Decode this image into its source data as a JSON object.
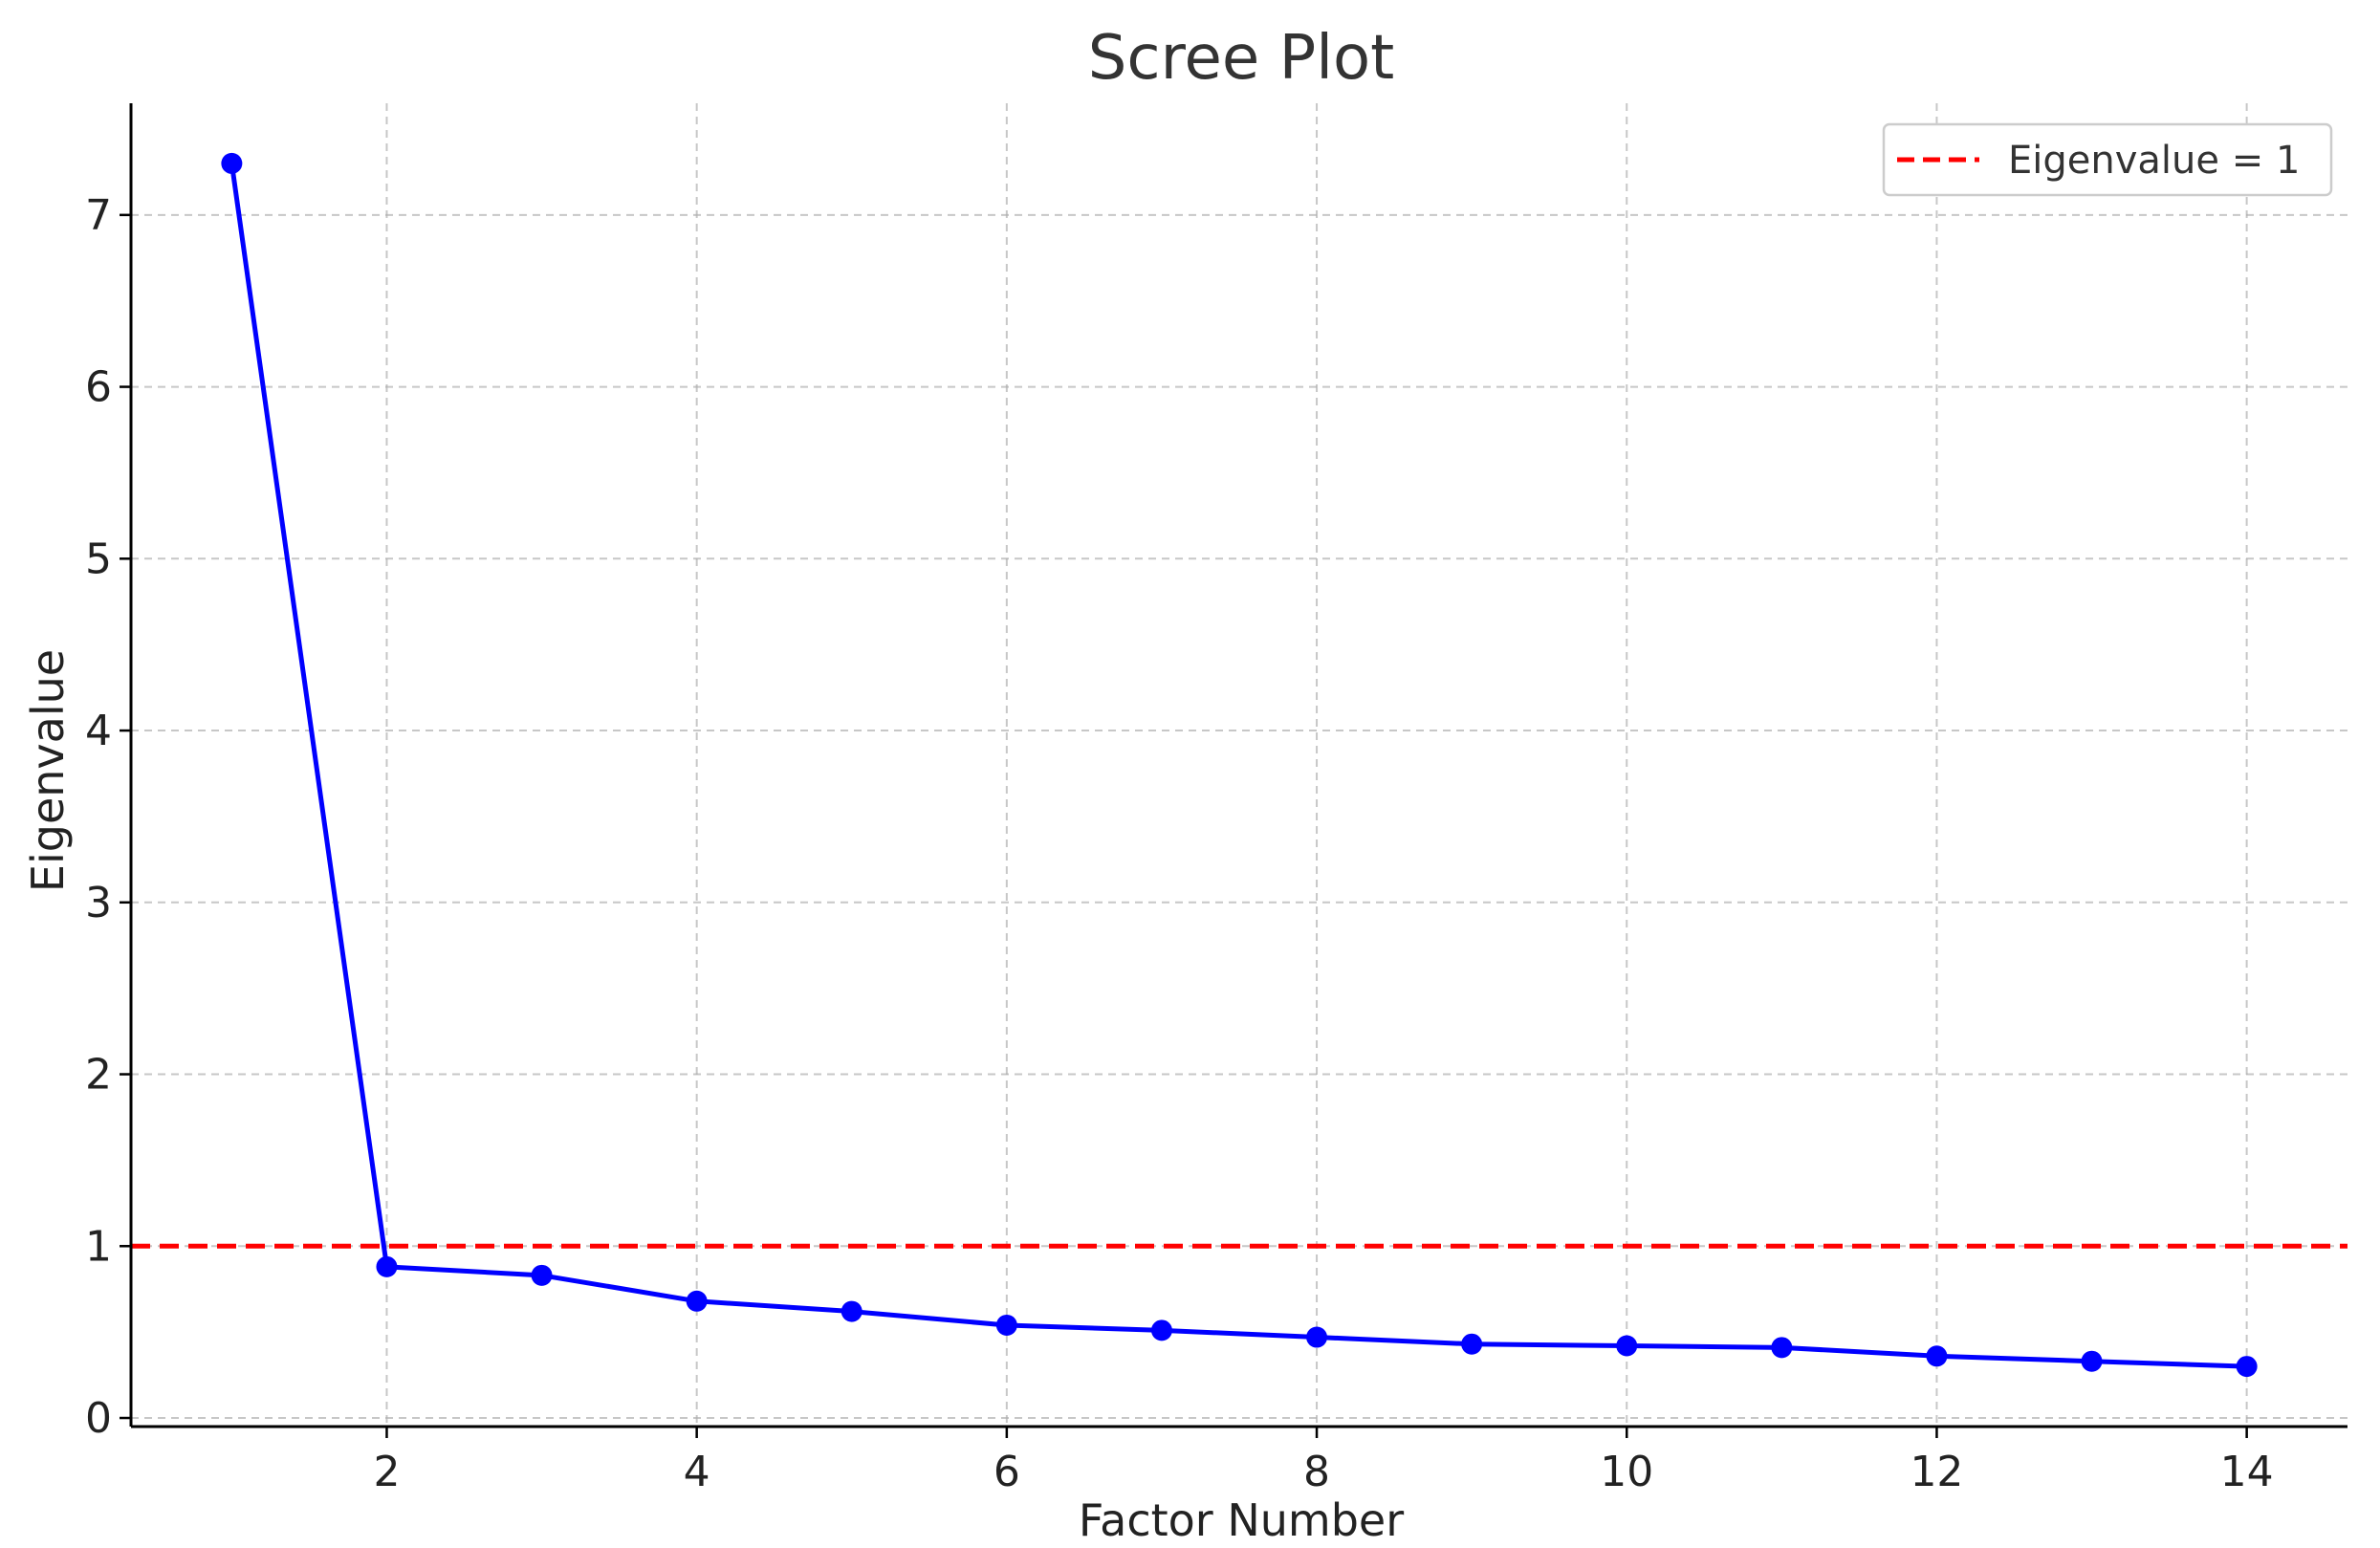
{
  "chart_data": {
    "type": "line",
    "title": "Scree Plot",
    "xlabel": "Factor Number",
    "ylabel": "Eigenvalue",
    "xlim": [
      0.35,
      14.65
    ],
    "ylim": [
      -0.05,
      7.65
    ],
    "xticks": [
      2,
      4,
      6,
      8,
      10,
      12,
      14
    ],
    "yticks": [
      0,
      1,
      2,
      3,
      4,
      5,
      6,
      7
    ],
    "grid": true,
    "legend_position": "top-right",
    "series": [
      {
        "name": "",
        "color": "#0000ff",
        "marker": "circle",
        "x": [
          1,
          2,
          3,
          4,
          5,
          6,
          7,
          8,
          9,
          10,
          11,
          12,
          13,
          14
        ],
        "y": [
          7.3,
          0.88,
          0.83,
          0.68,
          0.62,
          0.54,
          0.51,
          0.47,
          0.43,
          0.42,
          0.41,
          0.36,
          0.33,
          0.3
        ]
      }
    ],
    "reference_lines": [
      {
        "name": "Eigenvalue = 1",
        "y": 1,
        "color": "#ff0000",
        "style": "dashed"
      }
    ]
  }
}
